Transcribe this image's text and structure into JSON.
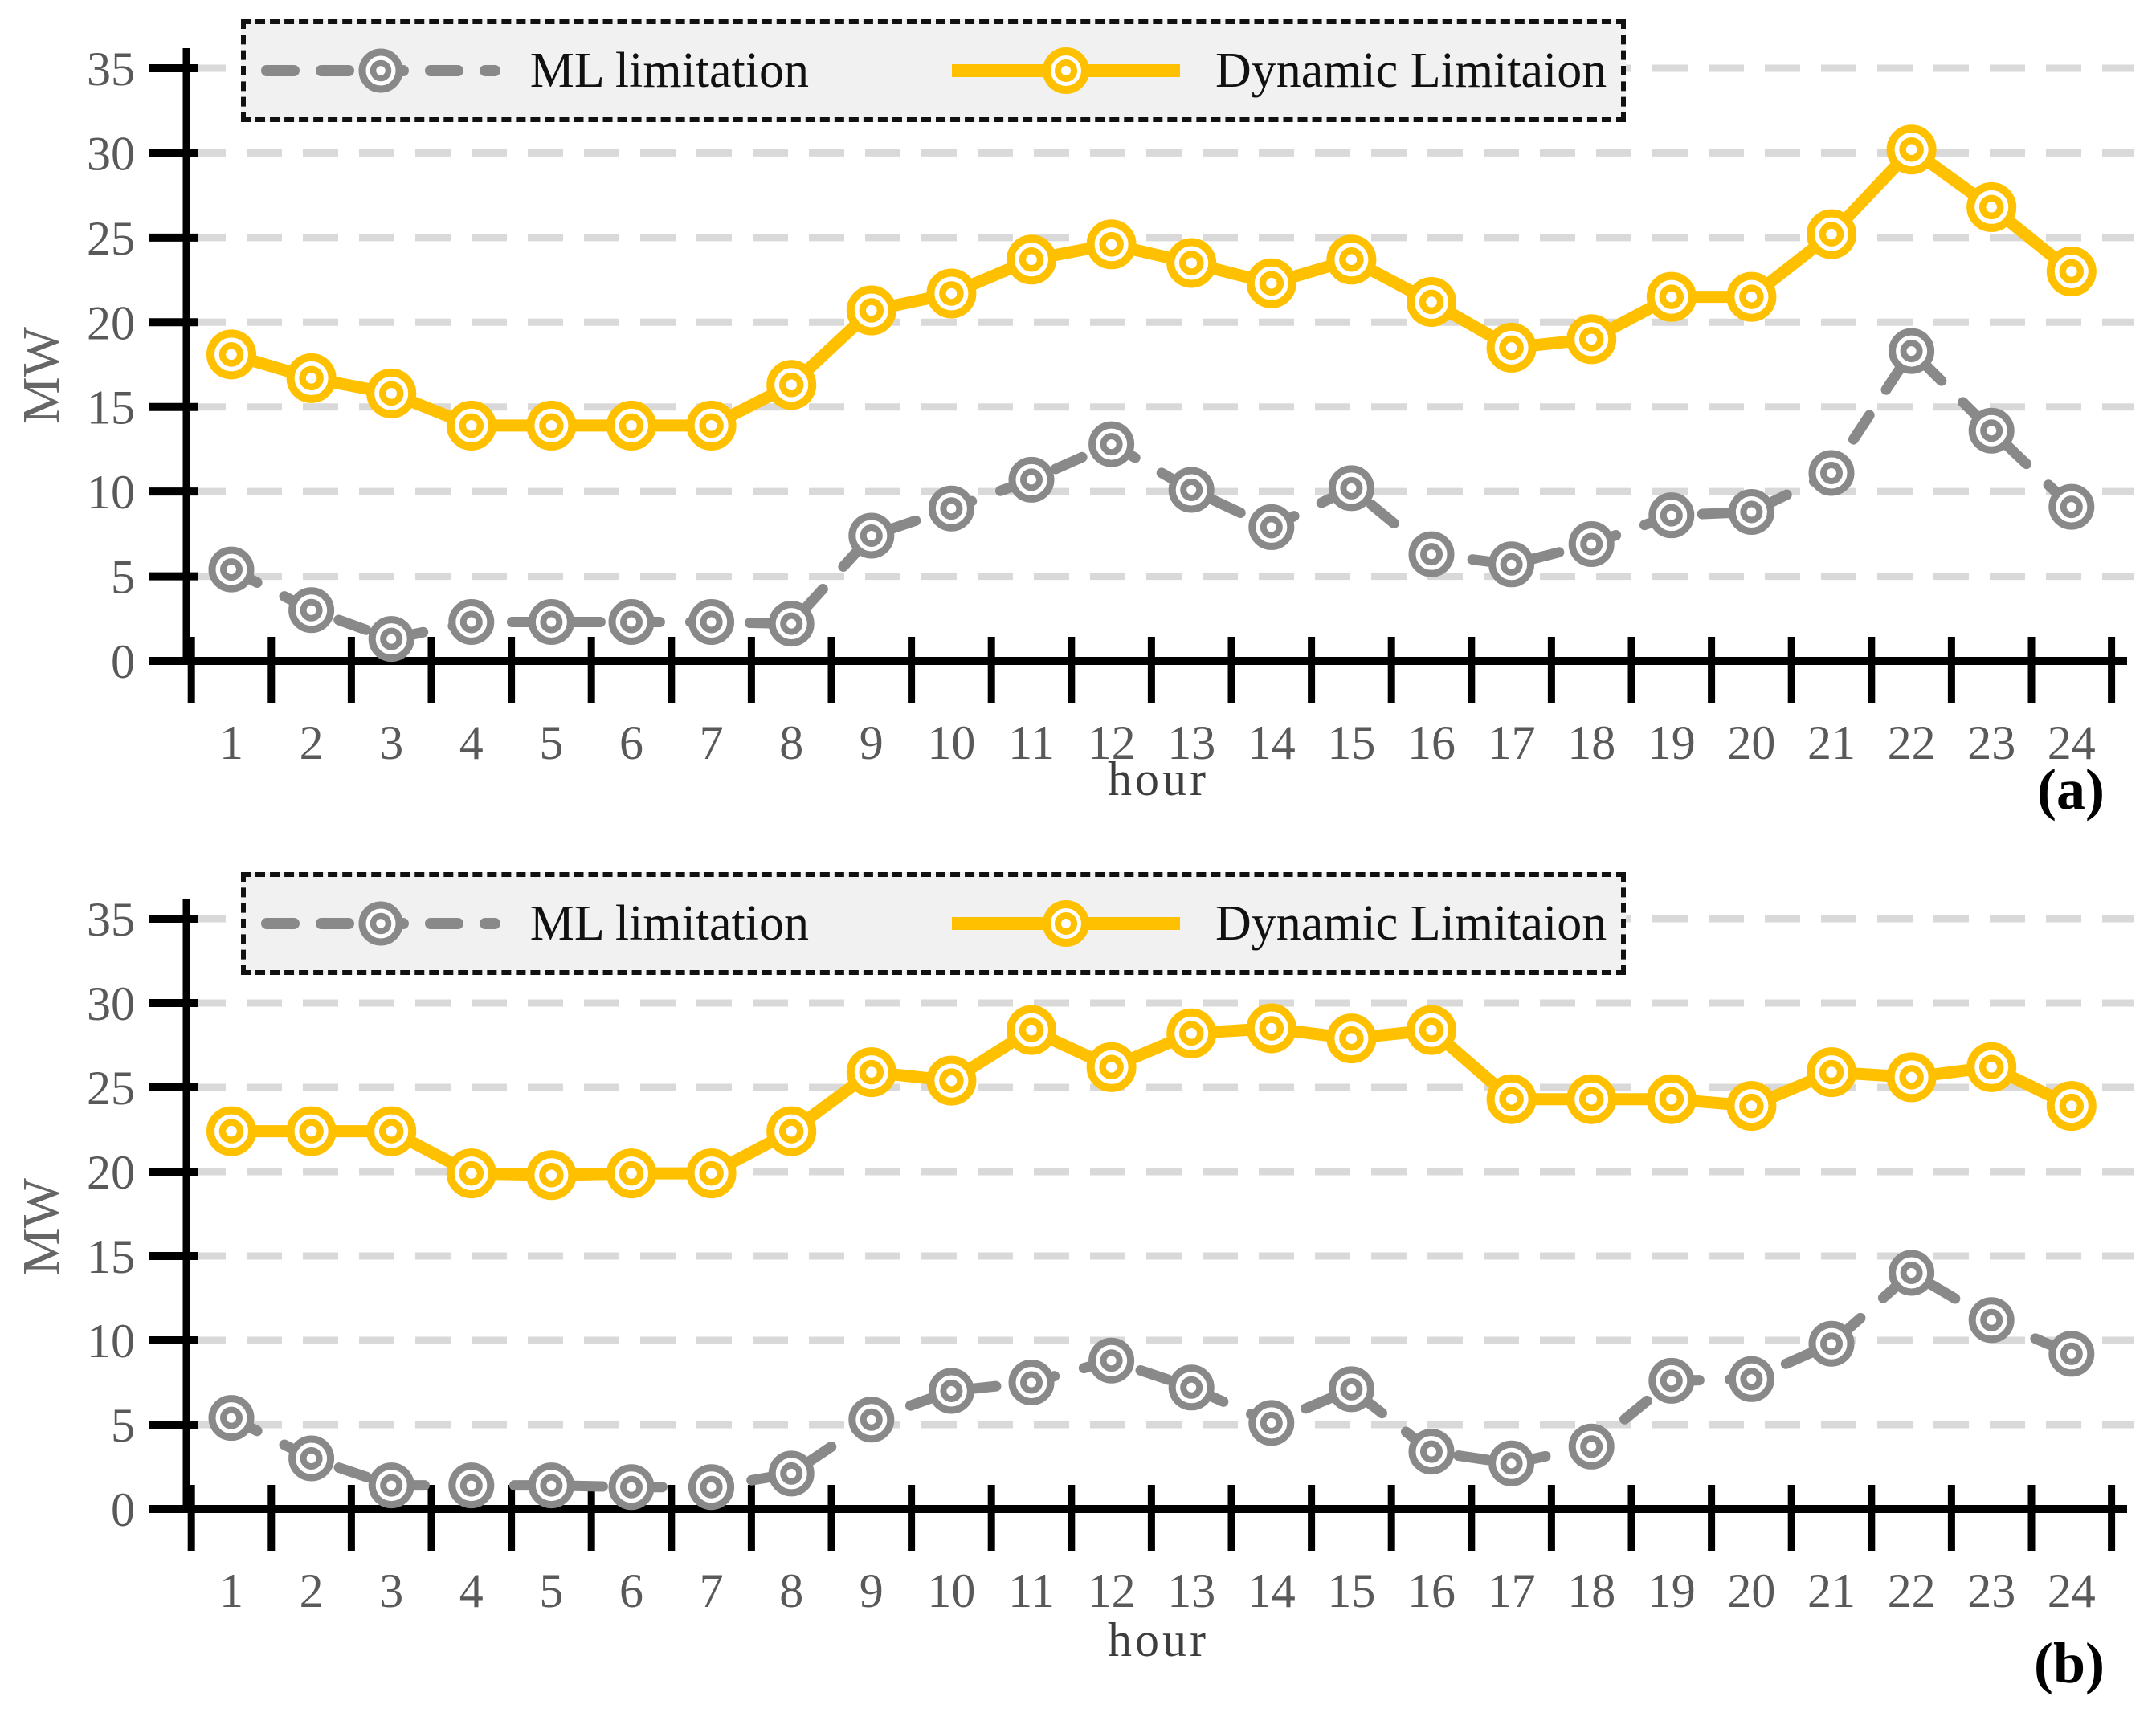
{
  "colors": {
    "ml": "#898989",
    "dynamic": "#FFC000",
    "grid": "#d9d9d9",
    "axis": "#000000",
    "legend_bg": "#f1f1f1",
    "tick_text": "#595959"
  },
  "chart_data": [
    {
      "type": "line",
      "panel": "(a)",
      "ylabel": "MW",
      "xlabel": "hour",
      "ylim": [
        0,
        35
      ],
      "yticks": [
        0,
        5,
        10,
        15,
        20,
        25,
        30,
        35
      ],
      "grid": "horizontal-dashed",
      "legend_position": "top",
      "x": [
        1,
        2,
        3,
        4,
        5,
        6,
        7,
        8,
        9,
        10,
        11,
        12,
        13,
        14,
        15,
        16,
        17,
        18,
        19,
        20,
        21,
        22,
        23,
        24
      ],
      "series": [
        {
          "name": "ML limitation",
          "style": "dashed",
          "color_key": "ml",
          "values": [
            5.4,
            3.0,
            1.3,
            2.3,
            2.3,
            2.3,
            2.3,
            2.2,
            7.4,
            9.0,
            10.7,
            12.8,
            10.1,
            7.9,
            10.2,
            6.3,
            5.7,
            6.9,
            8.6,
            8.8,
            11.1,
            18.3,
            13.6,
            9.1
          ]
        },
        {
          "name": "Dynamic Limitaion",
          "style": "solid",
          "color_key": "dynamic",
          "values": [
            18.1,
            16.7,
            15.8,
            13.9,
            13.9,
            13.9,
            13.9,
            16.3,
            20.7,
            21.7,
            23.7,
            24.6,
            23.5,
            22.3,
            23.7,
            21.2,
            18.5,
            19.0,
            21.5,
            21.5,
            25.2,
            30.2,
            26.8,
            23.0
          ]
        }
      ]
    },
    {
      "type": "line",
      "panel": "(b)",
      "ylabel": "MW",
      "xlabel": "hour",
      "ylim": [
        0,
        35
      ],
      "yticks": [
        0,
        5,
        10,
        15,
        20,
        25,
        30,
        35
      ],
      "grid": "horizontal-dashed",
      "legend_position": "top",
      "x": [
        1,
        2,
        3,
        4,
        5,
        6,
        7,
        8,
        9,
        10,
        11,
        12,
        13,
        14,
        15,
        16,
        17,
        18,
        19,
        20,
        21,
        22,
        23,
        24
      ],
      "series": [
        {
          "name": "ML limitation",
          "style": "dashed",
          "color_key": "ml",
          "values": [
            5.4,
            3.0,
            1.4,
            1.4,
            1.4,
            1.3,
            1.3,
            2.1,
            5.3,
            7.0,
            7.5,
            8.8,
            7.2,
            5.1,
            7.1,
            3.4,
            2.7,
            3.7,
            7.6,
            7.7,
            9.8,
            14.0,
            11.2,
            9.2
          ]
        },
        {
          "name": "Dynamic Limitaion",
          "style": "solid",
          "color_key": "dynamic",
          "values": [
            22.4,
            22.4,
            22.4,
            19.9,
            19.8,
            19.9,
            19.9,
            22.4,
            25.9,
            25.4,
            28.4,
            26.2,
            28.2,
            28.5,
            27.9,
            28.4,
            24.3,
            24.3,
            24.3,
            23.9,
            25.9,
            25.6,
            26.2,
            23.9
          ]
        }
      ]
    }
  ]
}
